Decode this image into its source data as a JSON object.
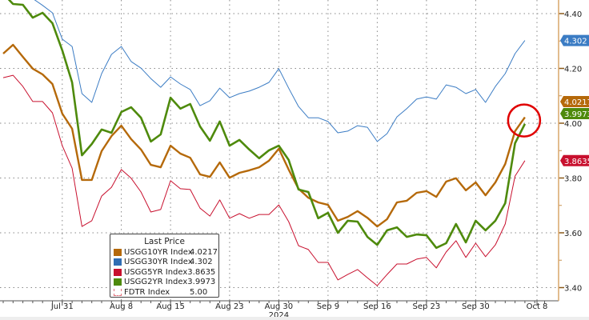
{
  "chart_data": {
    "type": "line",
    "title": "",
    "xlabel": "2024",
    "ylabel": "",
    "ylim": [
      3.36,
      4.45
    ],
    "yticks": [
      3.4,
      3.6,
      3.8,
      4.0,
      4.2,
      4.4
    ],
    "ytick_labels": [
      "3.40",
      "3.60",
      "3.80",
      "4.00",
      "4.20",
      "4.40"
    ],
    "x_count": 54,
    "xticks": [
      {
        "index": 6,
        "label": "Jul 31"
      },
      {
        "index": 12,
        "label": "Aug 8"
      },
      {
        "index": 17,
        "label": "Aug 15"
      },
      {
        "index": 23,
        "label": "Aug 23"
      },
      {
        "index": 28,
        "label": "Aug 30"
      },
      {
        "index": 33,
        "label": "Sep 9"
      },
      {
        "index": 38,
        "label": "Sep 16"
      },
      {
        "index": 43,
        "label": "Sep 23"
      },
      {
        "index": 48,
        "label": "Sep 30"
      },
      {
        "index": 54.2,
        "label": "Oct 8"
      }
    ],
    "year_label": "2024",
    "grid": true,
    "legend_position": "bottom-left",
    "legend_title": "Last Price",
    "series": [
      {
        "name": "USGG10YR Index",
        "last": "4.0217",
        "color": "#b5690a",
        "width": 2.4,
        "values": [
          4.254,
          4.286,
          4.242,
          4.199,
          4.178,
          4.143,
          4.035,
          3.98,
          3.793,
          3.793,
          3.898,
          3.953,
          3.991,
          3.942,
          3.904,
          3.848,
          3.839,
          3.918,
          3.889,
          3.874,
          3.813,
          3.804,
          3.857,
          3.801,
          3.819,
          3.828,
          3.839,
          3.863,
          3.907,
          3.831,
          3.761,
          3.728,
          3.711,
          3.702,
          3.644,
          3.658,
          3.679,
          3.655,
          3.623,
          3.65,
          3.711,
          3.717,
          3.746,
          3.752,
          3.731,
          3.787,
          3.799,
          3.755,
          3.784,
          3.737,
          3.784,
          3.851,
          3.971,
          4.0217
        ]
      },
      {
        "name": "USGG30YR Index",
        "last": "4.302",
        "color": "#3b7cc4",
        "width": 1,
        "values": [
          4.5,
          4.49,
          4.48,
          4.455,
          4.43,
          4.403,
          4.307,
          4.28,
          4.108,
          4.076,
          4.181,
          4.251,
          4.28,
          4.225,
          4.201,
          4.163,
          4.131,
          4.169,
          4.143,
          4.123,
          4.064,
          4.082,
          4.128,
          4.093,
          4.108,
          4.117,
          4.131,
          4.149,
          4.199,
          4.128,
          4.061,
          4.02,
          4.02,
          4.006,
          3.965,
          3.971,
          3.991,
          3.985,
          3.933,
          3.962,
          4.023,
          4.053,
          4.088,
          4.096,
          4.088,
          4.14,
          4.131,
          4.108,
          4.123,
          4.076,
          4.134,
          4.181,
          4.254,
          4.302
        ]
      },
      {
        "name": "USGG5YR Index",
        "last": "3.8635",
        "color": "#c8102e",
        "width": 1,
        "values": [
          4.166,
          4.175,
          4.134,
          4.079,
          4.079,
          4.038,
          3.918,
          3.836,
          3.623,
          3.644,
          3.734,
          3.766,
          3.831,
          3.799,
          3.749,
          3.676,
          3.685,
          3.79,
          3.761,
          3.758,
          3.69,
          3.661,
          3.72,
          3.653,
          3.67,
          3.653,
          3.667,
          3.667,
          3.702,
          3.641,
          3.553,
          3.539,
          3.492,
          3.492,
          3.428,
          3.448,
          3.466,
          3.436,
          3.407,
          3.448,
          3.486,
          3.486,
          3.504,
          3.51,
          3.472,
          3.53,
          3.571,
          3.51,
          3.562,
          3.513,
          3.556,
          3.632,
          3.807,
          3.8635
        ]
      },
      {
        "name": "USGG2YR Index",
        "last": "3.9973",
        "color": "#4e8a0c",
        "width": 2.6,
        "values": [
          4.473,
          4.435,
          4.432,
          4.385,
          4.403,
          4.365,
          4.266,
          4.149,
          3.883,
          3.924,
          3.977,
          3.965,
          4.041,
          4.058,
          4.02,
          3.933,
          3.959,
          4.093,
          4.053,
          4.07,
          3.988,
          3.936,
          4.006,
          3.918,
          3.939,
          3.904,
          3.872,
          3.901,
          3.918,
          3.866,
          3.758,
          3.749,
          3.653,
          3.673,
          3.6,
          3.644,
          3.641,
          3.585,
          3.556,
          3.609,
          3.62,
          3.585,
          3.594,
          3.591,
          3.545,
          3.562,
          3.632,
          3.565,
          3.644,
          3.609,
          3.644,
          3.708,
          3.927,
          3.9973
        ]
      },
      {
        "name": "FDTR Index",
        "last": "5.00",
        "color": "#e0707a",
        "width": 1,
        "values": []
      }
    ],
    "series_colors": {
      "usgg10yr": "#b5690a",
      "usgg30yr": "#3b7cc4",
      "usgg5yr": "#c8102e",
      "usgg2yr": "#4e8a0c",
      "fdtr": "#e0707a"
    },
    "annotation": {
      "type": "circle",
      "color": "#e00000",
      "target_index": 53,
      "target_value": 4.01
    }
  }
}
